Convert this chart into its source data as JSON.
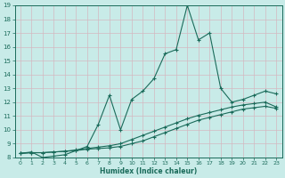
{
  "title": "",
  "xlabel": "Humidex (Indice chaleur)",
  "bg_color": "#c8ebe8",
  "grid_color": "#c8c8d8",
  "line_color": "#1a6b5a",
  "xlim": [
    -0.5,
    23.5
  ],
  "ylim": [
    8,
    19
  ],
  "xticks": [
    0,
    1,
    2,
    3,
    4,
    5,
    6,
    7,
    8,
    9,
    10,
    11,
    12,
    13,
    14,
    15,
    16,
    17,
    18,
    19,
    20,
    21,
    22,
    23
  ],
  "yticks": [
    8,
    9,
    10,
    11,
    12,
    13,
    14,
    15,
    16,
    17,
    18,
    19
  ],
  "line1_x": [
    0,
    1,
    2,
    3,
    4,
    5,
    6,
    7,
    8,
    9,
    10,
    11,
    12,
    13,
    14,
    15,
    16,
    17,
    18,
    19,
    20,
    21,
    22,
    23
  ],
  "line1_y": [
    8.3,
    8.4,
    8.0,
    8.1,
    8.2,
    8.5,
    8.8,
    10.4,
    12.5,
    10.0,
    12.2,
    12.8,
    13.7,
    15.5,
    15.8,
    19.0,
    16.5,
    17.0,
    13.0,
    12.0,
    12.2,
    12.5,
    12.8,
    12.6
  ],
  "line2_x": [
    0,
    1,
    2,
    3,
    4,
    5,
    6,
    7,
    8,
    9,
    10,
    11,
    12,
    13,
    14,
    15,
    16,
    17,
    18,
    19,
    20,
    21,
    22,
    23
  ],
  "line2_y": [
    8.3,
    8.35,
    8.35,
    8.4,
    8.45,
    8.5,
    8.6,
    8.65,
    8.7,
    8.8,
    9.0,
    9.2,
    9.5,
    9.8,
    10.1,
    10.4,
    10.7,
    10.9,
    11.1,
    11.3,
    11.5,
    11.6,
    11.7,
    11.55
  ],
  "line3_x": [
    0,
    1,
    2,
    3,
    4,
    5,
    6,
    7,
    8,
    9,
    10,
    11,
    12,
    13,
    14,
    15,
    16,
    17,
    18,
    19,
    20,
    21,
    22,
    23
  ],
  "line3_y": [
    8.3,
    8.35,
    8.35,
    8.4,
    8.45,
    8.55,
    8.65,
    8.75,
    8.85,
    9.0,
    9.3,
    9.6,
    9.9,
    10.2,
    10.5,
    10.8,
    11.05,
    11.25,
    11.45,
    11.65,
    11.8,
    11.9,
    12.0,
    11.65
  ]
}
